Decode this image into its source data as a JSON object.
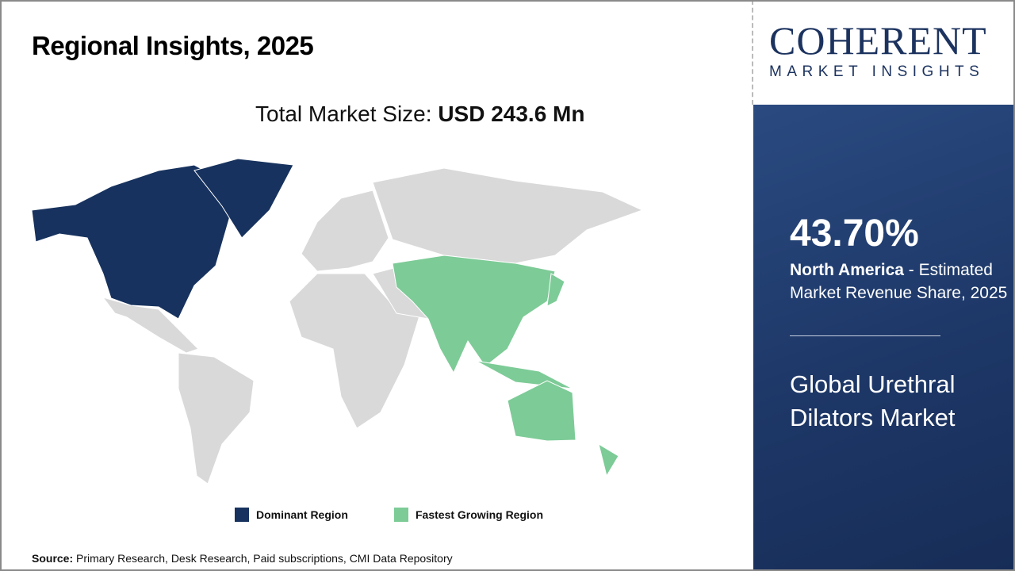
{
  "header": {
    "title": "Regional Insights, 2025",
    "total_label": "Total Market Size: ",
    "total_value": "USD 243.6 Mn"
  },
  "logo": {
    "line1": "COHERENT",
    "line2": "MARKET INSIGHTS"
  },
  "panel": {
    "share": "43.70%",
    "region": "North America",
    "share_desc": " - Estimated Market Revenue Share, 2025",
    "market_name": "Global Urethral Dilators Market"
  },
  "legend": [
    {
      "label": "Dominant Region",
      "color": "#17325e"
    },
    {
      "label": "Fastest Growing Region",
      "color": "#7dcb97"
    }
  ],
  "map": {
    "dominant_region": "North America",
    "fastest_growing_region": "Asia Pacific",
    "other_color": "#d9d9d9"
  },
  "source": {
    "label": "Source:",
    "text": " Primary Research, Desk Research, Paid subscriptions, CMI Data Repository"
  }
}
